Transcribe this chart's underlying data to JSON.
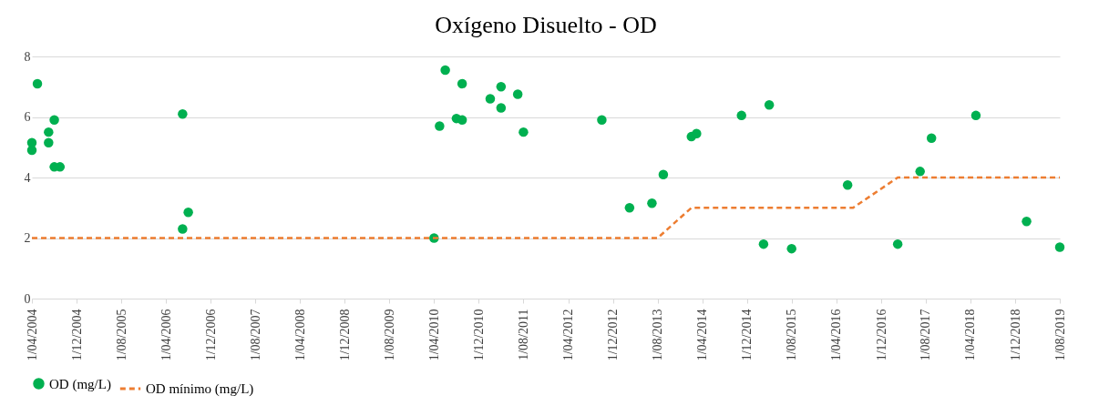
{
  "chart_data": {
    "type": "scatter",
    "title": "Oxígeno  Disuelto - OD",
    "series": [
      {
        "name": "OD (mg/L)",
        "color": "#00b050",
        "marker": "circle",
        "x": [
          "2004-04-01",
          "2004-04-01",
          "2004-05-01",
          "2004-07-01",
          "2004-07-01",
          "2004-08-01",
          "2004-08-01",
          "2004-09-01",
          "2006-07-01",
          "2006-07-01",
          "2006-08-01",
          "2010-04-01",
          "2010-05-01",
          "2010-06-01",
          "2010-08-01",
          "2010-09-01",
          "2010-09-01",
          "2011-02-01",
          "2011-04-01",
          "2011-04-01",
          "2011-07-01",
          "2011-08-01",
          "2012-10-01",
          "2013-03-01",
          "2013-07-01",
          "2013-09-01",
          "2014-02-01",
          "2014-03-01",
          "2014-11-01",
          "2015-03-01",
          "2015-04-01",
          "2015-08-01",
          "2016-06-01",
          "2017-03-01",
          "2017-07-01",
          "2017-09-01",
          "2018-05-01",
          "2019-02-01",
          "2019-08-01"
        ],
        "values": [
          5.15,
          4.9,
          7.1,
          5.5,
          5.15,
          5.9,
          4.35,
          4.35,
          6.1,
          2.3,
          2.85,
          2.0,
          5.7,
          7.55,
          5.95,
          5.9,
          7.1,
          6.6,
          7.0,
          6.3,
          6.75,
          5.5,
          5.9,
          3.0,
          3.15,
          4.1,
          5.35,
          5.45,
          6.05,
          1.8,
          6.4,
          1.65,
          3.75,
          1.8,
          4.2,
          5.3,
          6.05,
          2.55,
          1.7
        ]
      },
      {
        "name": "OD mínimo (mg/L)",
        "type": "line",
        "color": "#ed7d31",
        "line_style": "dashed",
        "marker": "none",
        "x": [
          "2004-04-01",
          "2013-08-01",
          "2014-02-01",
          "2016-07-01",
          "2017-03-01",
          "2019-08-01"
        ],
        "values": [
          2,
          2,
          3,
          3,
          4,
          4
        ]
      }
    ],
    "ylim": [
      0,
      8
    ],
    "yticks": [
      0,
      2,
      4,
      6,
      8
    ],
    "xlim": [
      "2004-04-01",
      "2019-08-01"
    ],
    "xticks": [
      {
        "value": "2004-04-01",
        "label": "1/04/2004"
      },
      {
        "value": "2004-12-01",
        "label": "1/12/2004"
      },
      {
        "value": "2005-08-01",
        "label": "1/08/2005"
      },
      {
        "value": "2006-04-01",
        "label": "1/04/2006"
      },
      {
        "value": "2006-12-01",
        "label": "1/12/2006"
      },
      {
        "value": "2007-08-01",
        "label": "1/08/2007"
      },
      {
        "value": "2008-04-01",
        "label": "1/04/2008"
      },
      {
        "value": "2008-12-01",
        "label": "1/12/2008"
      },
      {
        "value": "2009-08-01",
        "label": "1/08/2009"
      },
      {
        "value": "2010-04-01",
        "label": "1/04/2010"
      },
      {
        "value": "2010-12-01",
        "label": "1/12/2010"
      },
      {
        "value": "2011-08-01",
        "label": "1/08/2011"
      },
      {
        "value": "2012-04-01",
        "label": "1/04/2012"
      },
      {
        "value": "2012-12-01",
        "label": "1/12/2012"
      },
      {
        "value": "2013-08-01",
        "label": "1/08/2013"
      },
      {
        "value": "2014-04-01",
        "label": "1/04/2014"
      },
      {
        "value": "2014-12-01",
        "label": "1/12/2014"
      },
      {
        "value": "2015-08-01",
        "label": "1/08/2015"
      },
      {
        "value": "2016-04-01",
        "label": "1/04/2016"
      },
      {
        "value": "2016-12-01",
        "label": "1/12/2016"
      },
      {
        "value": "2017-08-01",
        "label": "1/08/2017"
      },
      {
        "value": "2018-04-01",
        "label": "1/04/2018"
      },
      {
        "value": "2018-12-01",
        "label": "1/12/2018"
      },
      {
        "value": "2019-08-01",
        "label": "1/08/2019"
      }
    ],
    "grid": "y",
    "legend": "bottom"
  }
}
